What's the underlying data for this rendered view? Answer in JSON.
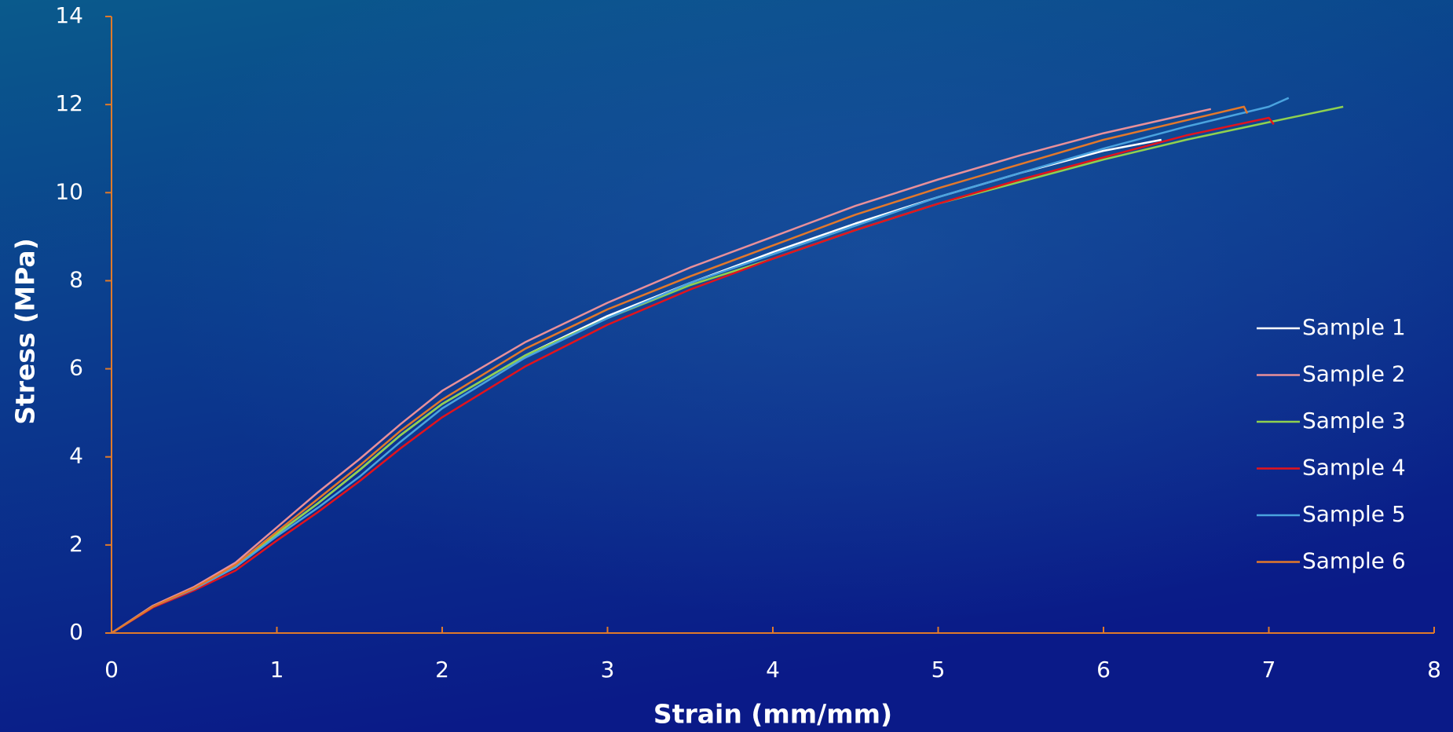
{
  "chart_data": {
    "type": "line",
    "x_label": "Strain (mm/mm)",
    "y_label": "Stress (MPa)",
    "xlim": [
      0,
      8
    ],
    "xticks": [
      0,
      1,
      2,
      3,
      4,
      5,
      6,
      7,
      8
    ],
    "ylim": [
      0,
      14
    ],
    "yticks": [
      0,
      2,
      4,
      6,
      8,
      10,
      12,
      14
    ],
    "grid": false,
    "legend": "right",
    "axis_color": "#e07a2a",
    "series": [
      {
        "name": "Sample 1",
        "color": "#ffffff",
        "x": [
          0,
          0.25,
          0.5,
          0.75,
          1,
          1.25,
          1.5,
          1.75,
          2,
          2.5,
          3,
          3.5,
          4,
          4.5,
          5,
          5.5,
          6,
          6.35
        ],
        "values": [
          0,
          0.6,
          1.0,
          1.5,
          2.25,
          2.95,
          3.7,
          4.5,
          5.2,
          6.3,
          7.2,
          7.95,
          8.65,
          9.3,
          9.9,
          10.45,
          10.95,
          11.2
        ]
      },
      {
        "name": "Sample 2",
        "color": "#e8909a",
        "x": [
          0,
          0.25,
          0.5,
          0.75,
          1,
          1.25,
          1.5,
          1.75,
          2,
          2.5,
          3,
          3.5,
          4,
          4.5,
          5,
          5.5,
          6,
          6.65
        ],
        "values": [
          0,
          0.62,
          1.05,
          1.6,
          2.4,
          3.2,
          3.95,
          4.75,
          5.5,
          6.6,
          7.5,
          8.3,
          9.0,
          9.7,
          10.3,
          10.85,
          11.35,
          11.9
        ]
      },
      {
        "name": "Sample 3",
        "color": "#8fd14f",
        "x": [
          0,
          0.25,
          0.5,
          0.75,
          1,
          1.25,
          1.5,
          1.75,
          2,
          2.5,
          3,
          3.5,
          4,
          4.5,
          5,
          5.5,
          6,
          6.5,
          7,
          7.45
        ],
        "values": [
          0,
          0.6,
          1.0,
          1.5,
          2.25,
          2.95,
          3.7,
          4.5,
          5.2,
          6.3,
          7.15,
          7.9,
          8.5,
          9.15,
          9.75,
          10.25,
          10.75,
          11.2,
          11.6,
          11.95
        ]
      },
      {
        "name": "Sample 4",
        "color": "#e3131c",
        "x": [
          0,
          0.25,
          0.5,
          0.75,
          1,
          1.25,
          1.5,
          1.75,
          2,
          2.5,
          3,
          3.5,
          4,
          4.5,
          5,
          5.5,
          6,
          6.5,
          7,
          7.03
        ],
        "values": [
          0,
          0.58,
          0.97,
          1.42,
          2.1,
          2.75,
          3.45,
          4.2,
          4.9,
          6.05,
          7.0,
          7.8,
          8.5,
          9.15,
          9.75,
          10.3,
          10.8,
          11.3,
          11.7,
          11.55
        ]
      },
      {
        "name": "Sample 5",
        "color": "#4aa3df",
        "x": [
          0,
          0.25,
          0.5,
          0.75,
          1,
          1.25,
          1.5,
          1.75,
          2,
          2.5,
          3,
          3.5,
          4,
          4.5,
          5,
          5.5,
          6,
          6.5,
          7,
          7.12
        ],
        "values": [
          0,
          0.6,
          1.0,
          1.5,
          2.2,
          2.85,
          3.55,
          4.35,
          5.1,
          6.25,
          7.15,
          7.95,
          8.6,
          9.25,
          9.9,
          10.45,
          11.0,
          11.5,
          11.95,
          12.15
        ]
      },
      {
        "name": "Sample 6",
        "color": "#e3782b",
        "x": [
          0,
          0.25,
          0.5,
          0.75,
          1,
          1.25,
          1.5,
          1.75,
          2,
          2.5,
          3,
          3.5,
          4,
          4.5,
          5,
          5.5,
          6,
          6.85,
          6.87
        ],
        "values": [
          0,
          0.6,
          1.02,
          1.55,
          2.3,
          3.05,
          3.8,
          4.6,
          5.3,
          6.45,
          7.35,
          8.1,
          8.8,
          9.5,
          10.1,
          10.65,
          11.2,
          11.95,
          11.8
        ]
      }
    ]
  }
}
